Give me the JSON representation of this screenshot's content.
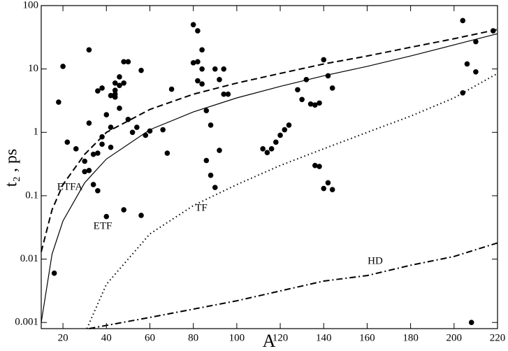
{
  "chart_data": {
    "type": "scatter",
    "xlabel": "A",
    "ylabel": "t₂ , ps",
    "xlim": [
      10,
      220
    ],
    "ylim": [
      0.0008,
      100
    ],
    "log_y": true,
    "xticks": [
      20,
      40,
      60,
      80,
      100,
      120,
      140,
      160,
      180,
      200,
      220
    ],
    "yticks": [
      0.001,
      0.01,
      0.1,
      1,
      10,
      100
    ],
    "points": {
      "color": "#000000",
      "x": [
        16,
        18,
        20,
        22,
        26,
        30,
        30,
        32,
        32,
        32,
        34,
        34,
        36,
        36,
        36,
        38,
        38,
        38,
        40,
        40,
        42,
        42,
        42,
        44,
        44,
        44,
        44,
        46,
        46,
        46,
        48,
        48,
        48,
        50,
        50,
        52,
        54,
        56,
        56,
        58,
        60,
        66,
        68,
        70,
        80,
        80,
        82,
        82,
        82,
        84,
        84,
        84,
        86,
        86,
        88,
        88,
        90,
        90,
        92,
        92,
        94,
        94,
        96,
        112,
        114,
        116,
        118,
        120,
        122,
        124,
        128,
        130,
        132,
        134,
        136,
        136,
        138,
        138,
        140,
        140,
        142,
        142,
        144,
        144,
        204,
        204,
        206,
        208,
        210,
        210,
        218
      ],
      "values": [
        0.006,
        3,
        11,
        0.7,
        0.55,
        0.35,
        0.24,
        0.25,
        1.4,
        20,
        0.45,
        0.15,
        0.12,
        0.47,
        4.5,
        0.65,
        0.85,
        5,
        1.9,
        0.047,
        1.2,
        0.58,
        3.8,
        4,
        3.6,
        4.6,
        6,
        7.5,
        5.5,
        2.4,
        6,
        13,
        0.06,
        13,
        1.6,
        1.0,
        1.2,
        9.5,
        0.049,
        0.9,
        1.05,
        1.1,
        0.47,
        4.8,
        50,
        12.5,
        40,
        13,
        6.5,
        20,
        5.8,
        10,
        2.2,
        0.36,
        1.3,
        0.21,
        0.135,
        10,
        6.8,
        0.52,
        10,
        4,
        4,
        0.55,
        0.48,
        0.55,
        0.7,
        0.9,
        1.1,
        1.3,
        4.7,
        3.3,
        6.8,
        2.8,
        2.7,
        0.3,
        2.9,
        0.29,
        14,
        0.13,
        7.8,
        0.16,
        0.125,
        5,
        58,
        4.2,
        12,
        0.001,
        27,
        9,
        40
      ]
    },
    "series": [
      {
        "name": "ETFA",
        "color": "#000000",
        "dash": "9,5",
        "x": [
          10,
          15,
          20,
          30,
          40,
          60,
          80,
          100,
          120,
          140,
          160,
          180,
          200,
          220
        ],
        "values": [
          0.013,
          0.06,
          0.15,
          0.45,
          1.0,
          2.3,
          4,
          6,
          8.5,
          12,
          16,
          22,
          30,
          42
        ]
      },
      {
        "name": "ETF",
        "color": "#000000",
        "dash": "none",
        "x": [
          10,
          15,
          20,
          30,
          40,
          60,
          80,
          100,
          120,
          140,
          160,
          180,
          200,
          220
        ],
        "values": [
          0.001,
          0.012,
          0.04,
          0.16,
          0.38,
          1.1,
          2.1,
          3.5,
          5.3,
          7.8,
          11,
          16,
          24,
          36
        ]
      },
      {
        "name": "TF",
        "color": "#000000",
        "dash": "1.5,4",
        "x": [
          31,
          40,
          60,
          80,
          100,
          120,
          140,
          160,
          180,
          200,
          220
        ],
        "values": [
          0.0008,
          0.004,
          0.025,
          0.07,
          0.15,
          0.3,
          0.55,
          1.0,
          1.8,
          3.5,
          8.5
        ]
      },
      {
        "name": "HD",
        "color": "#000000",
        "dash": "9,4,2,4",
        "x": [
          32,
          60,
          100,
          140,
          160,
          180,
          200,
          220
        ],
        "values": [
          0.0008,
          0.0012,
          0.0022,
          0.0045,
          0.0055,
          0.008,
          0.011,
          0.018
        ]
      }
    ]
  }
}
